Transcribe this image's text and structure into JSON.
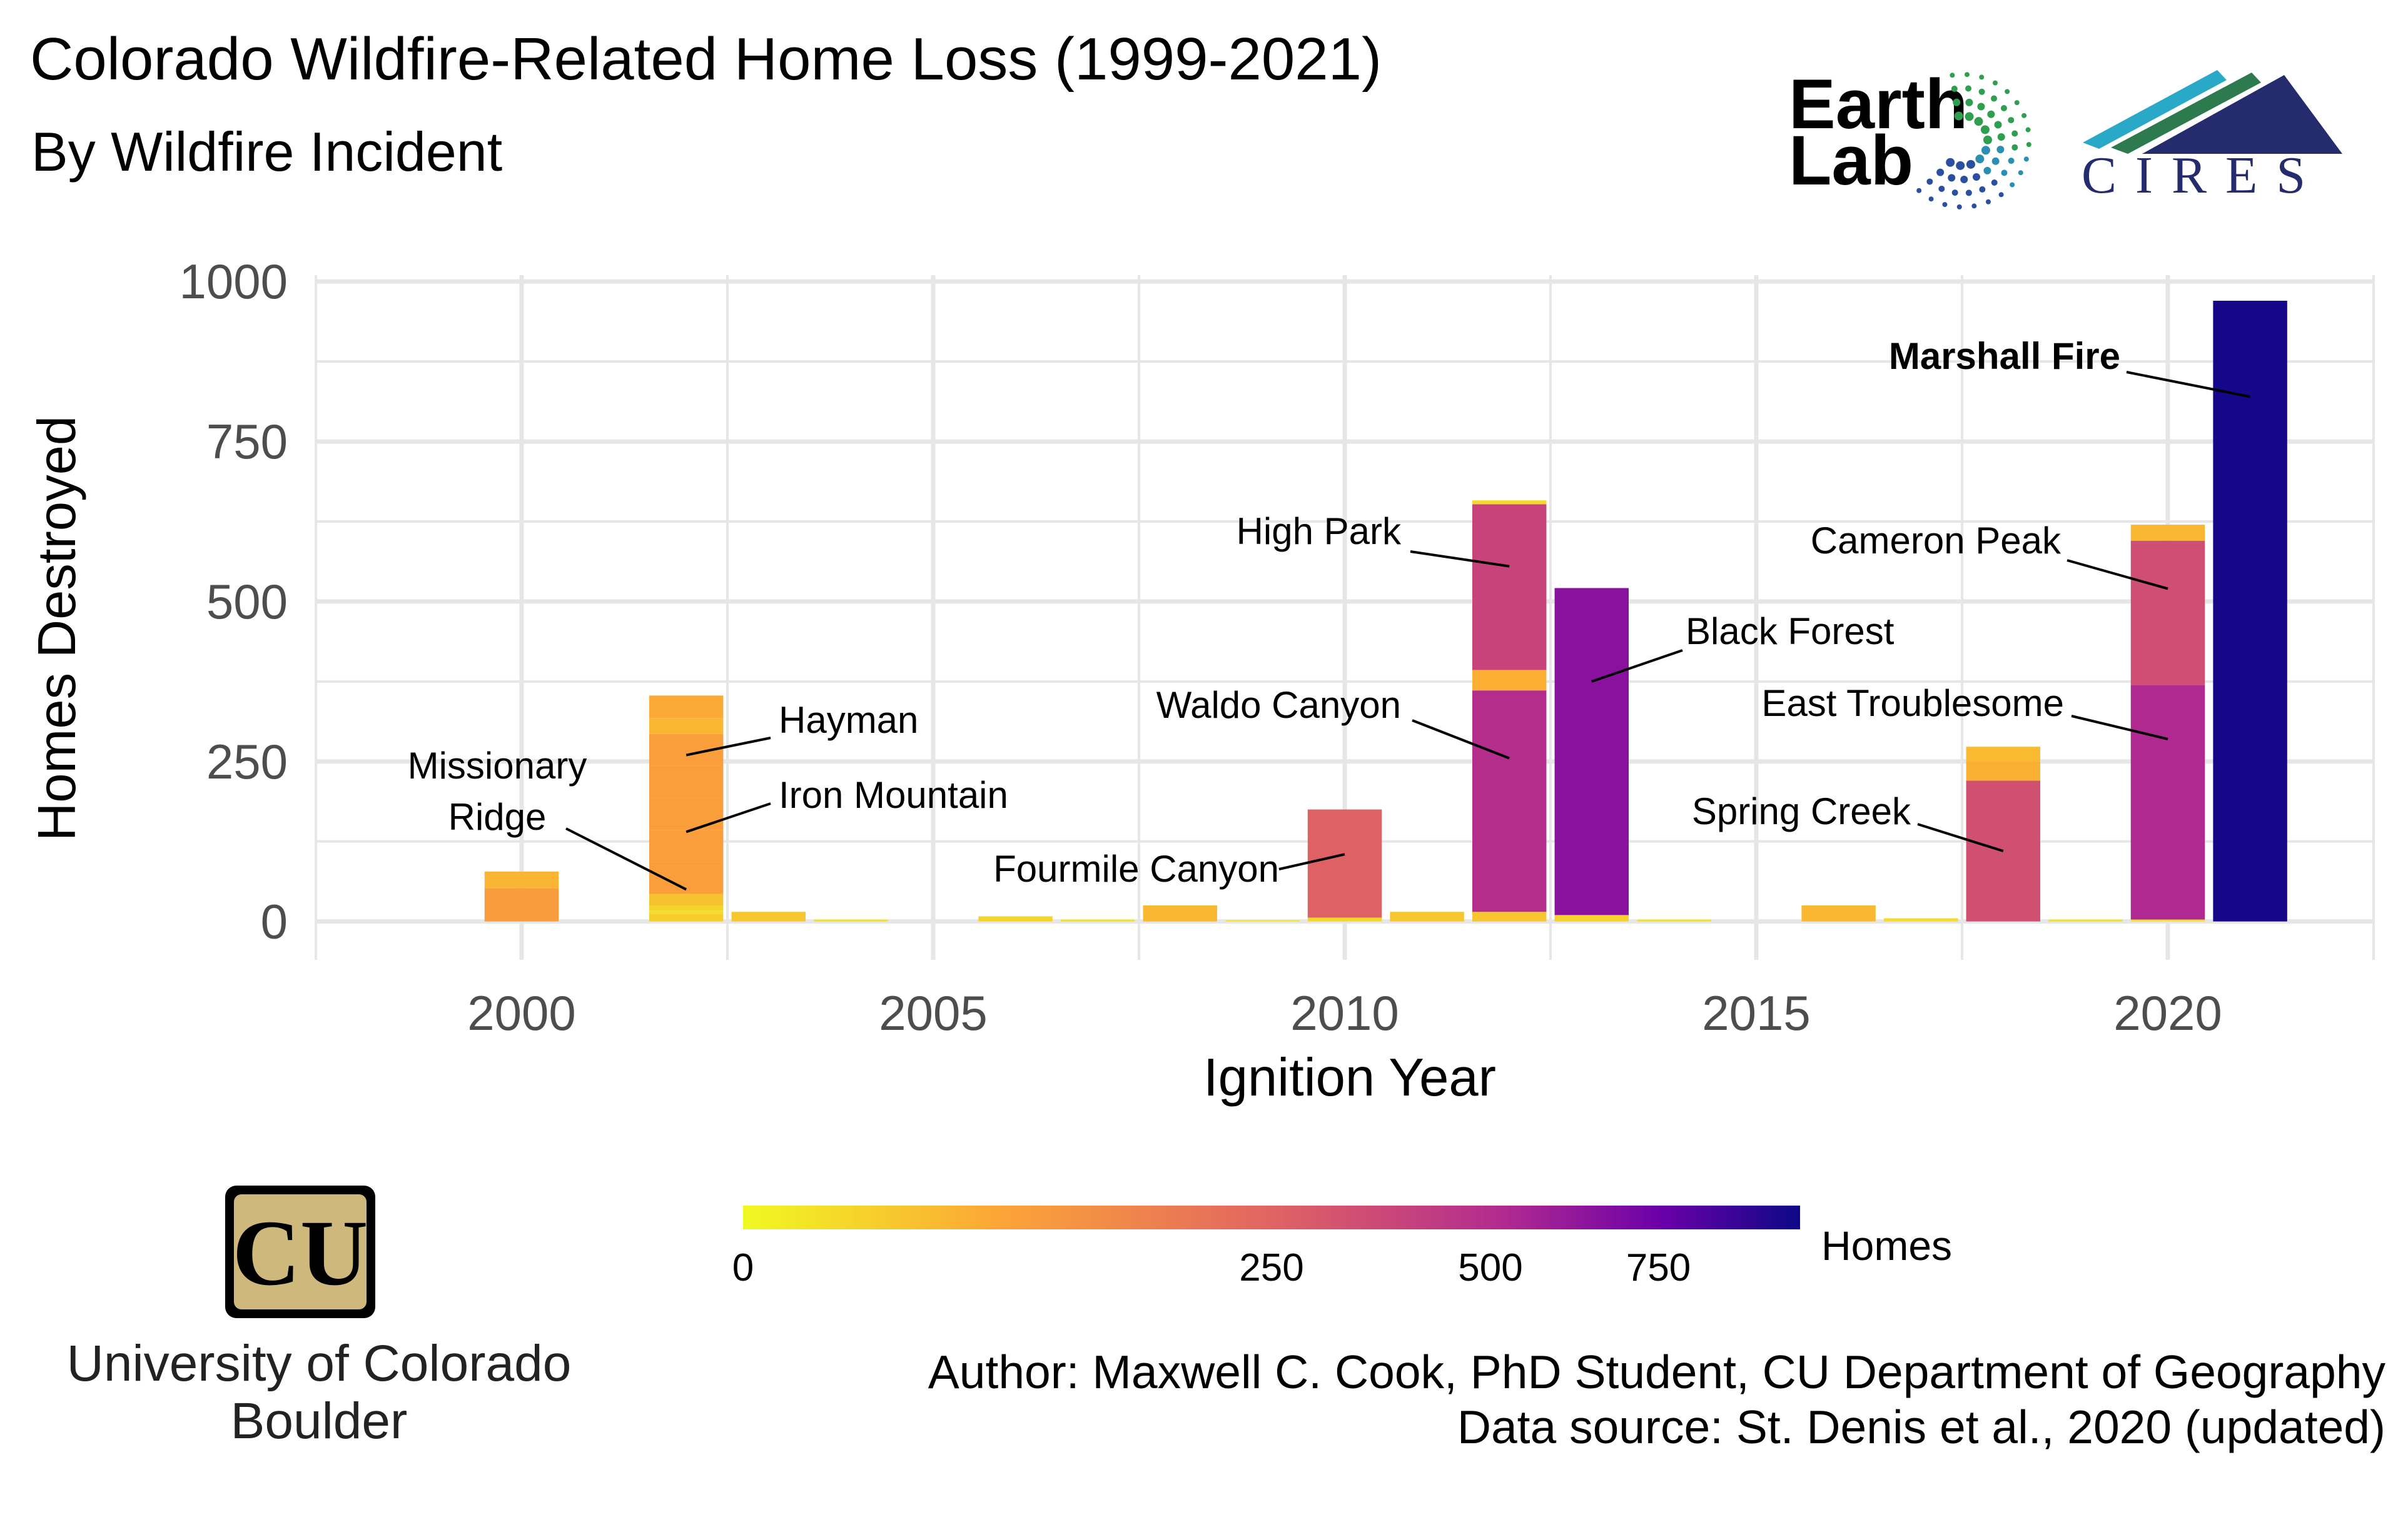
{
  "title": "Colorado Wildfire-Related Home Loss (1999-2021)",
  "subtitle": "By Wildfire Incident",
  "credit": {
    "author": "Author: Maxwell C. Cook, PhD Student, CU Department of Geography",
    "source": "Data source: St. Denis et al., 2020 (updated)"
  },
  "logos": {
    "earthlab_line1": "Earth",
    "earthlab_line2": "Lab",
    "cires": "CIRES",
    "cu_line1": "University of Colorado",
    "cu_line2": "Boulder"
  },
  "colors": {
    "background": "#ffffff",
    "grid": "#e6e6e6",
    "scale": [
      "#f0f921",
      "#fca636",
      "#e16462",
      "#b12a90",
      "#6a00a8",
      "#0d0887"
    ]
  },
  "chart_data": {
    "type": "bar",
    "stacked": true,
    "xlabel": "Ignition Year",
    "ylabel": "Homes Destroyed",
    "xlim": [
      1997.5,
      2022.5
    ],
    "ylim": [
      -60,
      1010
    ],
    "x_ticks": [
      2000,
      2005,
      2010,
      2015,
      2020
    ],
    "y_ticks": [
      0,
      250,
      500,
      750,
      1000
    ],
    "color_scale": {
      "label": "Homes",
      "min": 0,
      "max": 1000,
      "ticks": [
        0,
        250,
        500,
        750
      ],
      "transform": "sqrt"
    },
    "bars": [
      {
        "year": 2000,
        "segments": [
          52,
          26
        ]
      },
      {
        "year": 2002,
        "segments": [
          12,
          5,
          8,
          18,
          50,
          50,
          50,
          50,
          50,
          25,
          35
        ]
      },
      {
        "year": 2003,
        "segments": [
          15
        ]
      },
      {
        "year": 2004,
        "segments": [
          3
        ]
      },
      {
        "year": 2006,
        "segments": [
          8
        ]
      },
      {
        "year": 2007,
        "segments": [
          3
        ]
      },
      {
        "year": 2008,
        "segments": [
          25
        ]
      },
      {
        "year": 2009,
        "segments": [
          2
        ]
      },
      {
        "year": 2010,
        "segments": [
          6,
          169
        ]
      },
      {
        "year": 2011,
        "segments": [
          15
        ]
      },
      {
        "year": 2012,
        "segments": [
          15,
          346,
          32,
          259,
          6
        ]
      },
      {
        "year": 2013,
        "segments": [
          10,
          511
        ]
      },
      {
        "year": 2014,
        "segments": [
          3
        ]
      },
      {
        "year": 2016,
        "segments": [
          25
        ]
      },
      {
        "year": 2017,
        "segments": [
          5
        ]
      },
      {
        "year": 2018,
        "segments": [
          220,
          30,
          23
        ]
      },
      {
        "year": 2019,
        "segments": [
          3
        ]
      },
      {
        "year": 2020,
        "segments": [
          3,
          366,
          226,
          25
        ]
      },
      {
        "year": 2021,
        "segments": [
          970
        ]
      }
    ],
    "annotations": [
      {
        "text": "Missionary",
        "text2": "Ridge",
        "year": 2002,
        "value": 50
      },
      {
        "text": "Hayman",
        "year": 2002,
        "value": 260
      },
      {
        "text": "Iron Mountain",
        "year": 2002,
        "value": 140
      },
      {
        "text": "Fourmile Canyon",
        "year": 2010,
        "value": 105
      },
      {
        "text": "High Park",
        "year": 2012,
        "value": 555
      },
      {
        "text": "Waldo Canyon",
        "year": 2012,
        "value": 255
      },
      {
        "text": "Black Forest",
        "year": 2013,
        "value": 375
      },
      {
        "text": "Spring Creek",
        "year": 2018,
        "value": 110
      },
      {
        "text": "East Troublesome",
        "year": 2020,
        "value": 285
      },
      {
        "text": "Cameron Peak",
        "year": 2020,
        "value": 520
      },
      {
        "text": "Marshall Fire",
        "year": 2021,
        "value": 820,
        "bold": true
      }
    ]
  }
}
